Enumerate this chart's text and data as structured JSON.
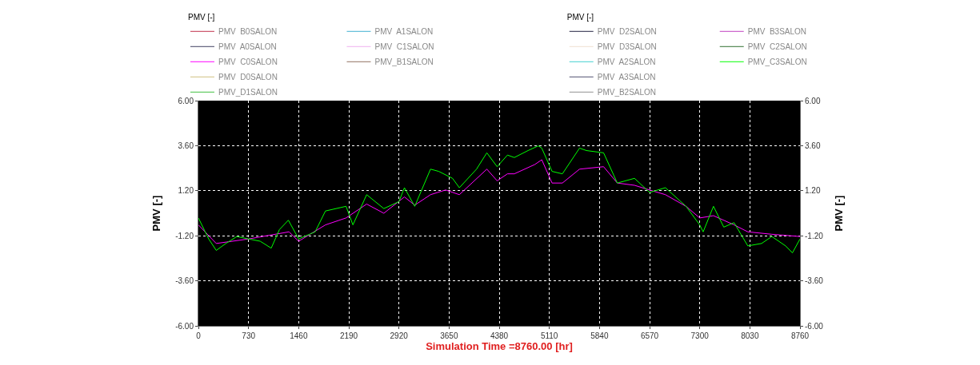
{
  "chart_data": {
    "type": "line",
    "xlabel": "Simulation Time =8760.00 [hr]",
    "ylabel": "PMV [-]",
    "y2label": "PMV [-]",
    "legend_title": "PMV [-]",
    "legend": "top",
    "grid": true,
    "line_style": "solid",
    "xlim": [
      0,
      8760
    ],
    "xticks": [
      0,
      730,
      1460,
      2190,
      2920,
      3650,
      4380,
      5110,
      5840,
      6570,
      7300,
      8030,
      8760
    ],
    "ylim": [
      -6,
      6
    ],
    "yticks": [
      {
        "value": -6,
        "label": "-6.00"
      },
      {
        "value": -3.6,
        "label": "-3.60"
      },
      {
        "value": -1.2,
        "label": "-1.20"
      },
      {
        "value": 1.2,
        "label": "1.20"
      },
      {
        "value": 3.6,
        "label": "3.60"
      },
      {
        "value": 6,
        "label": "6.00"
      }
    ],
    "y2lim": [
      -6,
      6
    ],
    "y2ticks": [
      {
        "value": -6,
        "label": "-6.00"
      },
      {
        "value": -3.6,
        "label": "-3.60"
      },
      {
        "value": -1.2,
        "label": "-1.20"
      },
      {
        "value": 1.2,
        "label": "1.20"
      },
      {
        "value": 3.6,
        "label": "3.60"
      },
      {
        "value": 6,
        "label": "6.00"
      }
    ],
    "series": [
      {
        "name": "PMV  B0SALON",
        "color": "#c0304a"
      },
      {
        "name": "PMV  A0SALON",
        "color": "#404060"
      },
      {
        "name": "PMV  C0SALON",
        "color": "#ff00ff",
        "x": [
          0,
          260,
          730,
          1320,
          1460,
          1850,
          2150,
          2450,
          2700,
          3000,
          3150,
          3380,
          3600,
          3800,
          4200,
          4350,
          4500,
          4600,
          4900,
          5000,
          5150,
          5300,
          5550,
          5900,
          6100,
          6350,
          6570,
          6800,
          7100,
          7300,
          7500,
          7800,
          8000,
          8350,
          8760
        ],
        "values": [
          -0.62,
          -1.61,
          -1.37,
          -0.99,
          -1.49,
          -0.62,
          -0.25,
          0.49,
          0.0,
          0.87,
          0.43,
          0.99,
          1.24,
          0.99,
          2.35,
          1.73,
          2.1,
          2.1,
          2.6,
          2.85,
          1.61,
          1.61,
          2.35,
          2.48,
          1.61,
          1.49,
          1.24,
          0.99,
          0.37,
          -0.25,
          -0.13,
          -0.62,
          -0.99,
          -1.12,
          -1.24
        ]
      },
      {
        "name": "PMV  D0SALON",
        "color": "#d0c080"
      },
      {
        "name": "PMV_D1SALON",
        "color": "#40c040"
      },
      {
        "name": "PMV  A1SALON",
        "color": "#40b0d0"
      },
      {
        "name": "PMV  C1SALON",
        "color": "#f0b0f0"
      },
      {
        "name": "PMV_B1SALON",
        "color": "#907060"
      },
      {
        "name": "PMV  D2SALON",
        "color": "#202040"
      },
      {
        "name": "PMV  D3SALON",
        "color": "#f0e0d0"
      },
      {
        "name": "PMV  A2SALON",
        "color": "#40d0d0"
      },
      {
        "name": "PMV  A3SALON",
        "color": "#505070"
      },
      {
        "name": "PMV_B2SALON",
        "color": "#909090"
      },
      {
        "name": "PMV  B3SALON",
        "color": "#c040c0"
      },
      {
        "name": "PMV  C2SALON",
        "color": "#307030"
      },
      {
        "name": "PMV_C3SALON",
        "color": "#00ff00",
        "x": [
          0,
          150,
          260,
          400,
          560,
          730,
          900,
          1060,
          1180,
          1310,
          1460,
          1700,
          1850,
          2150,
          2250,
          2450,
          2700,
          2920,
          3000,
          3150,
          3380,
          3500,
          3700,
          3800,
          4050,
          4200,
          4350,
          4500,
          4600,
          4800,
          4950,
          5000,
          5150,
          5300,
          5550,
          5650,
          5900,
          6100,
          6350,
          6570,
          6800,
          7100,
          7300,
          7350,
          7500,
          7650,
          7800,
          8000,
          8200,
          8350,
          8550,
          8650,
          8760
        ],
        "values": [
          -0.25,
          -1.37,
          -1.98,
          -1.61,
          -1.24,
          -1.37,
          -1.49,
          -1.86,
          -0.87,
          -0.37,
          -1.37,
          -0.99,
          0.12,
          0.37,
          -0.62,
          0.99,
          0.25,
          0.62,
          1.36,
          0.37,
          2.35,
          2.23,
          1.86,
          1.36,
          2.35,
          3.22,
          2.48,
          3.1,
          2.97,
          3.34,
          3.59,
          3.47,
          2.23,
          2.1,
          3.47,
          3.34,
          3.22,
          1.61,
          1.86,
          1.11,
          1.36,
          0.37,
          -0.62,
          -0.99,
          0.37,
          -0.74,
          -0.5,
          -1.74,
          -1.61,
          -1.24,
          -1.74,
          -2.11,
          -1.37
        ]
      }
    ]
  }
}
